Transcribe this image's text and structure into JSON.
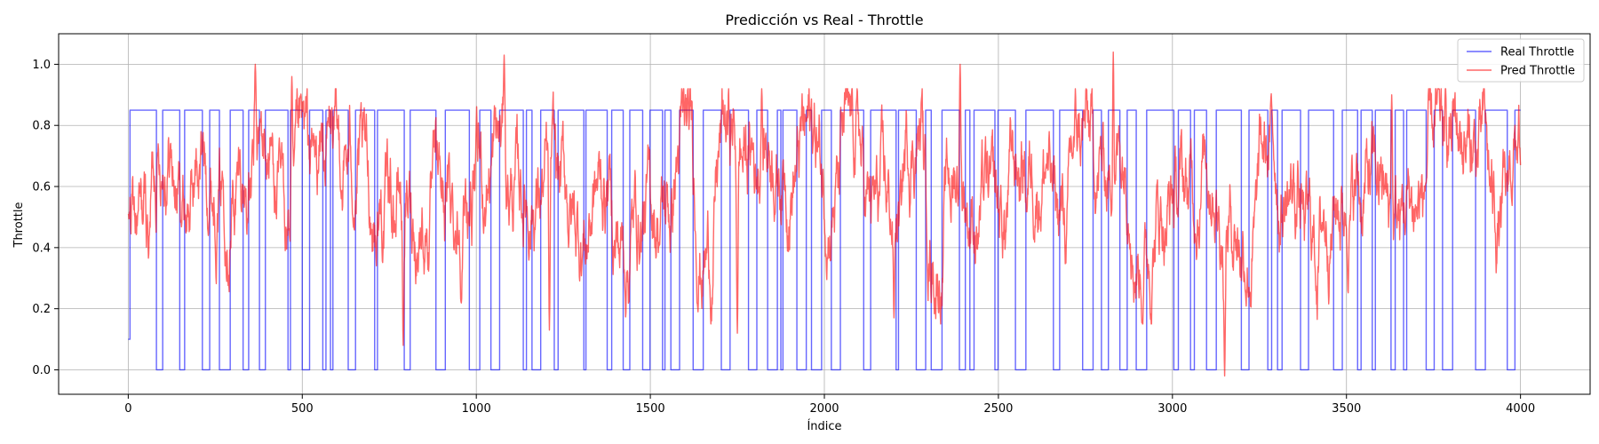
{
  "chart_data": {
    "type": "line",
    "title": "Predicción vs Real - Throttle",
    "xlabel": "Índice",
    "ylabel": "Throttle",
    "xlim": [
      -200,
      4200
    ],
    "ylim": [
      -0.08,
      1.1
    ],
    "xticks": [
      0,
      500,
      1000,
      1500,
      2000,
      2500,
      3000,
      3500,
      4000
    ],
    "yticks": [
      0.0,
      0.2,
      0.4,
      0.6,
      0.8,
      1.0
    ],
    "grid": true,
    "legend_position": "top-right",
    "x_range": [
      0,
      4000
    ],
    "series": [
      {
        "name": "Real Throttle",
        "color": "#0000ff",
        "opacity": 0.6,
        "levels": [
          0.0,
          0.85
        ],
        "description_values": "step signal alternating between 0.0 and 0.85, starting at 0.1"
      },
      {
        "name": "Pred Throttle",
        "color": "#ff0000",
        "opacity": 0.6,
        "description_values": "noisy continuous prediction mostly between 0.2 and 0.9, min about -0.02 near x=3150, max about 1.04 near x=2830"
      }
    ],
    "key_points_pred": [
      {
        "x": 0,
        "y": 0.51
      },
      {
        "x": 365,
        "y": 1.0
      },
      {
        "x": 470,
        "y": 0.96
      },
      {
        "x": 790,
        "y": 0.08
      },
      {
        "x": 1080,
        "y": 1.03
      },
      {
        "x": 1210,
        "y": 0.13
      },
      {
        "x": 1750,
        "y": 0.12
      },
      {
        "x": 1820,
        "y": 0.92
      },
      {
        "x": 2200,
        "y": 0.17
      },
      {
        "x": 2390,
        "y": 1.0
      },
      {
        "x": 2830,
        "y": 1.04
      },
      {
        "x": 3150,
        "y": -0.02
      },
      {
        "x": 3630,
        "y": 0.9
      },
      {
        "x": 4000,
        "y": 0.67
      }
    ]
  }
}
